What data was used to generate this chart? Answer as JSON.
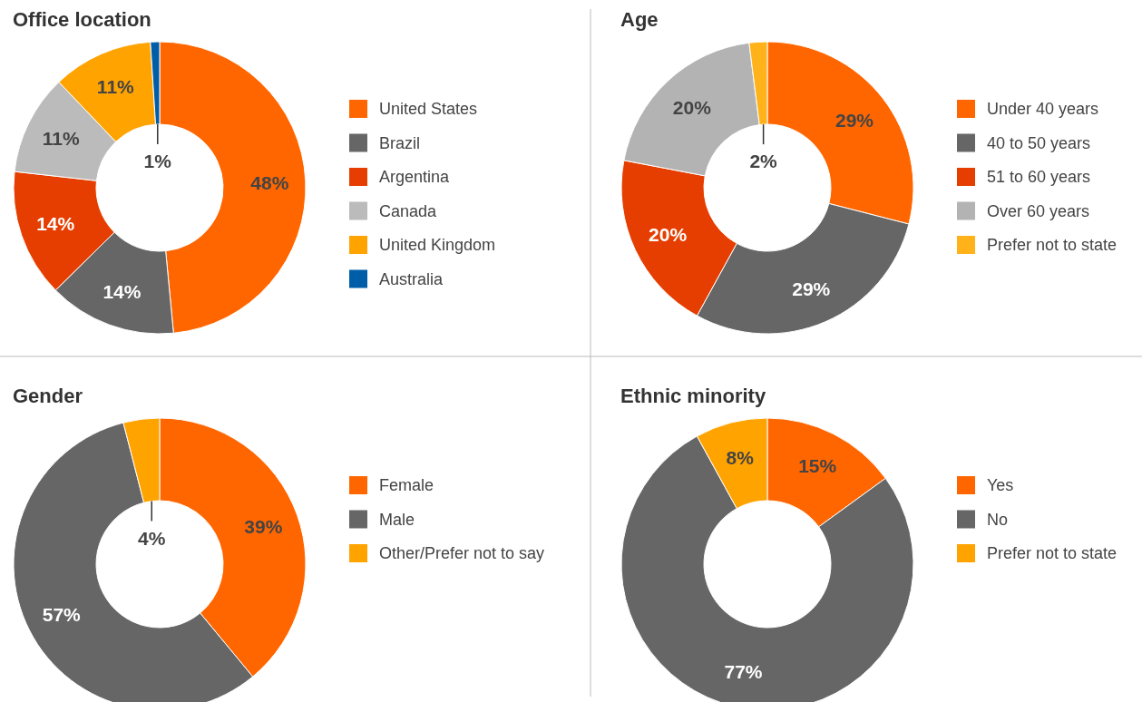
{
  "chart_data": [
    {
      "type": "donut",
      "title": "Office location",
      "categories": [
        "United States",
        "Brazil",
        "Argentina",
        "Canada",
        "United Kingdom",
        "Australia"
      ],
      "values": [
        48,
        14,
        14,
        11,
        11,
        1
      ],
      "value_labels": [
        "48%",
        "14%",
        "14%",
        "11%",
        "11%",
        "1%"
      ],
      "colors": [
        "#ff6600",
        "#666666",
        "#e63e00",
        "#bbbbbb",
        "#ffa300",
        "#005ea8"
      ],
      "legend": "right"
    },
    {
      "type": "donut",
      "title": "Age",
      "categories": [
        "Under 40 years",
        "40 to 50 years",
        "51 to 60 years",
        "Over 60 years",
        "Prefer not to state"
      ],
      "values": [
        29,
        29,
        20,
        20,
        2
      ],
      "value_labels": [
        "29%",
        "29%",
        "20%",
        "20%",
        "2%"
      ],
      "colors": [
        "#ff6600",
        "#666666",
        "#e63e00",
        "#b3b3b3",
        "#ffb21a"
      ],
      "legend": "right"
    },
    {
      "type": "donut",
      "title": "Gender",
      "categories": [
        "Female",
        "Male",
        "Other/Prefer not to say"
      ],
      "values": [
        39,
        57,
        4
      ],
      "value_labels": [
        "39%",
        "57%",
        "4%"
      ],
      "colors": [
        "#ff6600",
        "#666666",
        "#ffa300"
      ],
      "legend": "right"
    },
    {
      "type": "donut",
      "title": "Ethnic minority",
      "categories": [
        "Yes",
        "No",
        "Prefer not to state"
      ],
      "values": [
        15,
        77,
        8
      ],
      "value_labels": [
        "15%",
        "77%",
        "8%"
      ],
      "colors": [
        "#ff6600",
        "#666666",
        "#ffa300"
      ],
      "legend": "right"
    }
  ]
}
